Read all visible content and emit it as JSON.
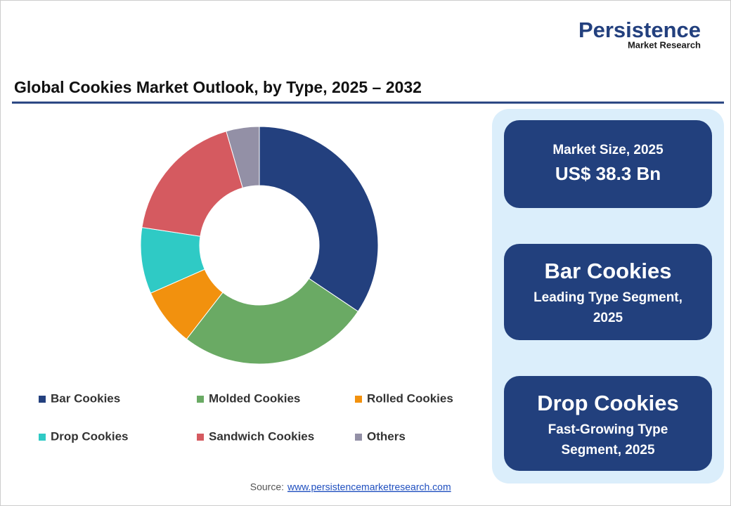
{
  "logo": {
    "name": "Persistence",
    "tagline": "Market Research"
  },
  "chart_data": {
    "type": "donut",
    "title": "Global Cookies Market Outlook, by Type, 2025 – 2032",
    "categories": [
      "Bar Cookies",
      "Molded Cookies",
      "Rolled Cookies",
      "Drop Cookies",
      "Sandwich Cookies",
      "Others"
    ],
    "values": [
      34.4,
      26.1,
      7.9,
      9.0,
      18.1,
      4.5
    ],
    "colors": [
      "#23407e",
      "#6aaa64",
      "#f2910e",
      "#2fcac5",
      "#d55a60",
      "#9390a6"
    ]
  },
  "cards": [
    [
      "Market Size, 2025",
      "US$ 38.3 Bn"
    ],
    [
      "Bar Cookies",
      "Leading Type Segment,",
      "2025"
    ],
    [
      "Drop Cookies",
      "Fast-Growing Type",
      "Segment, 2025"
    ]
  ],
  "source": {
    "label": "Source:",
    "url": "www.persistencemarketresearch.com"
  }
}
